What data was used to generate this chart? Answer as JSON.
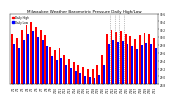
{
  "title": "Milwaukee Weather Barometric Pressure Daily High/Low",
  "bar_width": 0.4,
  "background_color": "#ffffff",
  "high_color": "#ff0000",
  "low_color": "#0000ff",
  "dates": [
    "7/1",
    "7/2",
    "7/3",
    "7/4",
    "7/5",
    "7/6",
    "7/7",
    "7/8",
    "7/9",
    "7/10",
    "7/11",
    "7/12",
    "7/13",
    "7/14",
    "7/15",
    "7/16",
    "7/17",
    "7/18",
    "7/19",
    "7/20",
    "7/21",
    "7/22",
    "7/23",
    "7/24",
    "7/25",
    "7/26",
    "7/27",
    "7/28",
    "7/29",
    "7/30",
    "7/31"
  ],
  "highs": [
    30.08,
    29.98,
    30.18,
    30.32,
    30.38,
    30.25,
    30.18,
    30.05,
    29.75,
    29.68,
    29.72,
    29.55,
    29.45,
    29.38,
    29.3,
    29.25,
    29.2,
    29.18,
    29.28,
    29.55,
    30.08,
    30.18,
    30.12,
    30.15,
    30.08,
    30.02,
    29.95,
    30.05,
    30.1,
    30.08,
    29.98
  ],
  "lows": [
    29.82,
    29.72,
    29.92,
    30.08,
    30.15,
    30.0,
    29.92,
    29.78,
    29.52,
    29.42,
    29.48,
    29.3,
    29.22,
    29.15,
    29.08,
    29.02,
    28.98,
    28.95,
    29.05,
    29.3,
    29.82,
    29.92,
    29.88,
    29.9,
    29.82,
    29.78,
    29.7,
    29.8,
    29.85,
    29.82,
    29.72
  ],
  "ylim_min": 28.8,
  "ylim_max": 30.6,
  "ytick_vals": [
    28.8,
    29.0,
    29.2,
    29.4,
    29.6,
    29.8,
    30.0,
    30.2,
    30.4,
    30.6
  ],
  "ytick_labels": [
    "28.8",
    "29.0",
    "29.2",
    "29.4",
    "29.6",
    "29.8",
    "30.0",
    "30.2",
    "30.4",
    "30.6"
  ],
  "dotted_vlines": [
    20.5,
    21.5,
    22.5,
    23.5
  ],
  "legend_high": "Daily High",
  "legend_low": "Daily Low"
}
